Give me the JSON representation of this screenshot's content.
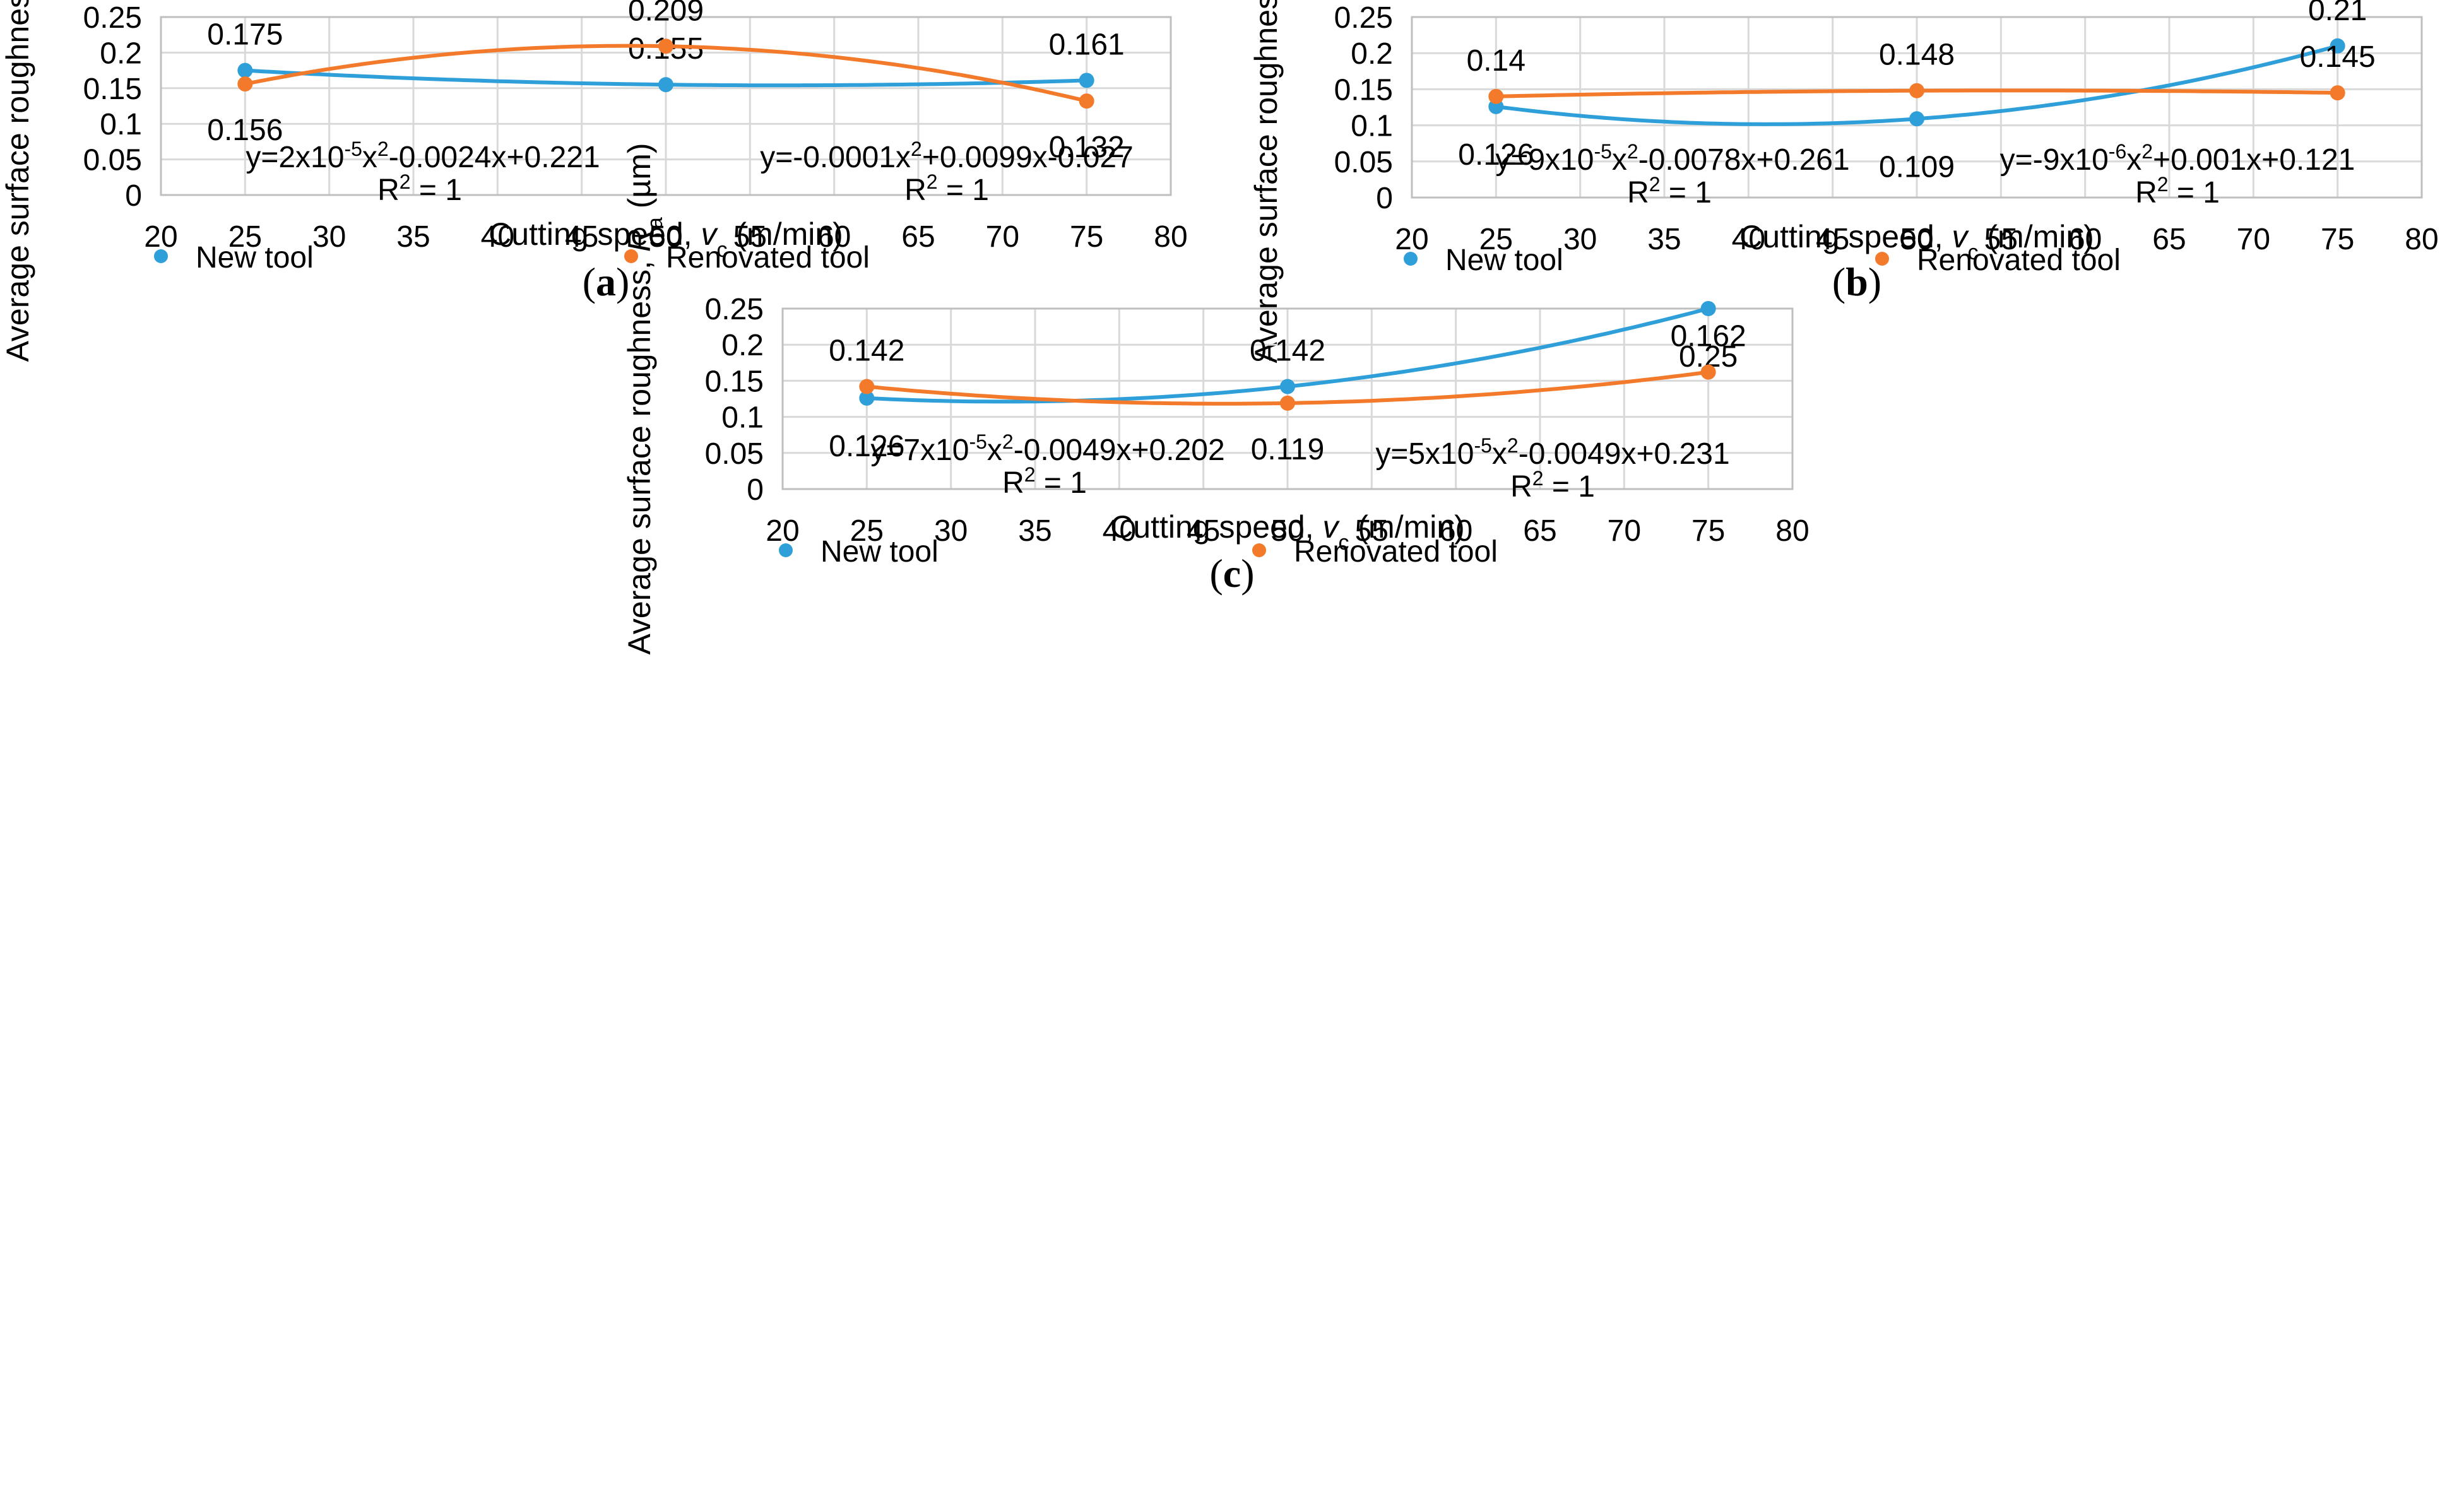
{
  "colors": {
    "new_tool": "#2E9FD9",
    "renovated_tool": "#F27A2A",
    "grid": "#D9D9D9",
    "axis": "#BFBFBF"
  },
  "legend": {
    "new_tool": "New tool",
    "renovated_tool": "Renovated tool"
  },
  "chart_data": [
    {
      "type": "scatter",
      "panel_label": "a",
      "xlabel": "Cutting speed, v_c (m/min)",
      "ylabel": "Average surface roughness, R_a (µm)",
      "xlim": [
        20,
        80
      ],
      "ylim": [
        0,
        0.25
      ],
      "x_ticks": [
        "20",
        "25",
        "30",
        "35",
        "40",
        "45",
        "50",
        "55",
        "60",
        "65",
        "70",
        "75",
        "80"
      ],
      "y_ticks": [
        "0",
        "0.05",
        "0.1",
        "0.15",
        "0.2",
        "0.25"
      ],
      "series": [
        {
          "name": "New tool",
          "x": [
            25,
            50,
            75
          ],
          "values": [
            0.175,
            0.155,
            0.161
          ],
          "labels": [
            "0.175",
            "0.155",
            "0.161"
          ],
          "trendline": {
            "equation": "y=2x10⁻⁵x²-0.0024x+0.221",
            "r2": "R² = 1"
          }
        },
        {
          "name": "Renovated tool",
          "x": [
            25,
            50,
            75
          ],
          "values": [
            0.156,
            0.209,
            0.132
          ],
          "labels": [
            "0.156",
            "0.209",
            "0.132"
          ],
          "trendline": {
            "equation": "y=-0.0001x²+0.0099x-0.027",
            "r2": "R² = 1"
          }
        }
      ]
    },
    {
      "type": "scatter",
      "panel_label": "b",
      "xlabel": "Cutting speed, v_c (m/min)",
      "ylabel": "Average surface roughness, R_a (µm)",
      "xlim": [
        20,
        80
      ],
      "ylim": [
        0,
        0.25
      ],
      "x_ticks": [
        "20",
        "25",
        "30",
        "35",
        "40",
        "45",
        "50",
        "55",
        "60",
        "65",
        "70",
        "75",
        "80"
      ],
      "y_ticks": [
        "0",
        "0.05",
        "0.1",
        "0.15",
        "0.2",
        "0.25"
      ],
      "series": [
        {
          "name": "New tool",
          "x": [
            25,
            50,
            75
          ],
          "values": [
            0.126,
            0.109,
            0.21
          ],
          "labels": [
            "0.126",
            "0.109",
            "0.21"
          ],
          "trendline": {
            "equation": "y=9x10⁻⁵x²-0.0078x+0.261",
            "r2": "R² = 1"
          }
        },
        {
          "name": "Renovated tool",
          "x": [
            25,
            50,
            75
          ],
          "values": [
            0.14,
            0.148,
            0.145
          ],
          "labels": [
            "0.14",
            "0.148",
            "0.145"
          ],
          "trendline": {
            "equation": "y=-9x10⁻⁶x²+0.001x+0.121",
            "r2": "R² = 1"
          }
        }
      ]
    },
    {
      "type": "scatter",
      "panel_label": "c",
      "xlabel": "Cutting speed, v_c (m/min)",
      "ylabel": "Average surface roughness, R_a (µm)",
      "xlim": [
        20,
        80
      ],
      "ylim": [
        0,
        0.25
      ],
      "x_ticks": [
        "20",
        "25",
        "30",
        "35",
        "40",
        "45",
        "50",
        "55",
        "60",
        "65",
        "70",
        "75",
        "80"
      ],
      "y_ticks": [
        "0",
        "0.05",
        "0.1",
        "0.15",
        "0.2",
        "0.25"
      ],
      "series": [
        {
          "name": "New tool",
          "x": [
            25,
            50,
            75
          ],
          "values": [
            0.126,
            0.142,
            0.25
          ],
          "labels": [
            "0.126",
            "0.142",
            "0.25"
          ],
          "trendline": {
            "equation": "y=7x10⁻⁵x²-0.0049x+0.202",
            "r2": "R² = 1"
          }
        },
        {
          "name": "Renovated tool",
          "x": [
            25,
            50,
            75
          ],
          "values": [
            0.142,
            0.119,
            0.162
          ],
          "labels": [
            "0.142",
            "0.119",
            "0.162"
          ],
          "trendline": {
            "equation": "y=5x10⁻⁵x²-0.0049x+0.231",
            "r2": "R² = 1"
          }
        }
      ]
    }
  ]
}
